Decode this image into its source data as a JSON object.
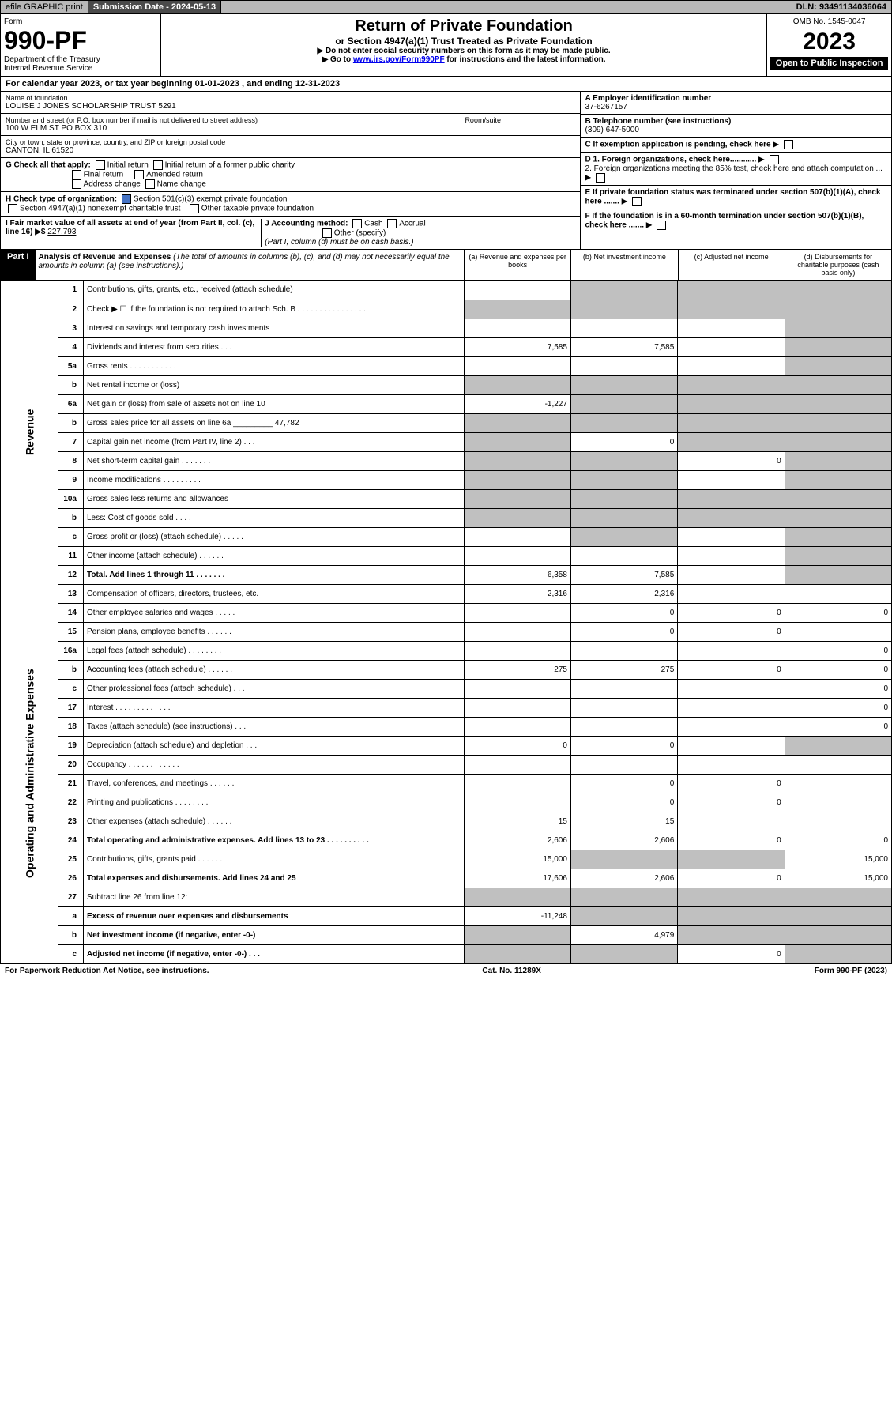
{
  "header": {
    "efile": "efile GRAPHIC print",
    "submission_label": "Submission Date - 2024-05-13",
    "dln": "DLN: 93491134036064"
  },
  "form": {
    "form_label": "Form",
    "form_num": "990-PF",
    "dept": "Department of the Treasury",
    "irs": "Internal Revenue Service",
    "title": "Return of Private Foundation",
    "subtitle": "or Section 4947(a)(1) Trust Treated as Private Foundation",
    "instr1": "▶ Do not enter social security numbers on this form as it may be made public.",
    "instr2_pre": "▶ Go to ",
    "instr2_link": "www.irs.gov/Form990PF",
    "instr2_post": " for instructions and the latest information.",
    "omb": "OMB No. 1545-0047",
    "year": "2023",
    "open": "Open to Public Inspection"
  },
  "cal_year": {
    "pre": "For calendar year 2023, or tax year beginning ",
    "begin": "01-01-2023",
    "mid": " , and ending ",
    "end": "12-31-2023"
  },
  "foundation": {
    "name_label": "Name of foundation",
    "name": "LOUISE J JONES SCHOLARSHIP TRUST 5291",
    "addr_label": "Number and street (or P.O. box number if mail is not delivered to street address)",
    "addr": "100 W ELM ST PO BOX 310",
    "room_label": "Room/suite",
    "city_label": "City or town, state or province, country, and ZIP or foreign postal code",
    "city": "CANTON, IL  61520",
    "ein_label": "A Employer identification number",
    "ein": "37-6267157",
    "phone_label": "B Telephone number (see instructions)",
    "phone": "(309) 647-5000",
    "c_label": "C If exemption application is pending, check here",
    "g_label": "G Check all that apply:",
    "g_opts": [
      "Initial return",
      "Initial return of a former public charity",
      "Final return",
      "Amended return",
      "Address change",
      "Name change"
    ],
    "d1": "D 1. Foreign organizations, check here............",
    "d2": "2. Foreign organizations meeting the 85% test, check here and attach computation ...",
    "e": "E  If private foundation status was terminated under section 507(b)(1)(A), check here .......",
    "h_label": "H Check type of organization:",
    "h1": "Section 501(c)(3) exempt private foundation",
    "h2": "Section 4947(a)(1) nonexempt charitable trust",
    "h3": "Other taxable private foundation",
    "f": "F  If the foundation is in a 60-month termination under section 507(b)(1)(B), check here .......",
    "i_label": "I Fair market value of all assets at end of year (from Part II, col. (c), line 16) ▶$ ",
    "i_val": "227,793",
    "j_label": "J Accounting method:",
    "j_cash": "Cash",
    "j_accrual": "Accrual",
    "j_other": "Other (specify)",
    "j_note": "(Part I, column (d) must be on cash basis.)"
  },
  "part1": {
    "label": "Part I",
    "title": "Analysis of Revenue and Expenses",
    "note": " (The total of amounts in columns (b), (c), and (d) may not necessarily equal the amounts in column (a) (see instructions).)",
    "col_a": "(a)  Revenue and expenses per books",
    "col_b": "(b)  Net investment income",
    "col_c": "(c)  Adjusted net income",
    "col_d": "(d)  Disbursements for charitable purposes (cash basis only)"
  },
  "sides": {
    "rev": "Revenue",
    "exp": "Operating and Administrative Expenses"
  },
  "rows": [
    {
      "n": "1",
      "d": "Contributions, gifts, grants, etc., received (attach schedule)",
      "a": "",
      "b": "g",
      "c": "g",
      "dd": "g"
    },
    {
      "n": "2",
      "d": "Check ▶ ☐ if the foundation is not required to attach Sch. B   .   .   .   .   .   .   .   .   .   .   .   .   .   .   .   .",
      "a": "g",
      "b": "g",
      "c": "g",
      "dd": "g"
    },
    {
      "n": "3",
      "d": "Interest on savings and temporary cash investments",
      "a": "",
      "b": "",
      "c": "",
      "dd": "g"
    },
    {
      "n": "4",
      "d": "Dividends and interest from securities   .   .   .",
      "a": "7,585",
      "b": "7,585",
      "c": "",
      "dd": "g"
    },
    {
      "n": "5a",
      "d": "Gross rents   .   .   .   .   .   .   .   .   .   .   .",
      "a": "",
      "b": "",
      "c": "",
      "dd": "g"
    },
    {
      "n": "b",
      "d": "Net rental income or (loss)  ",
      "a": "g",
      "b": "g",
      "c": "g",
      "dd": "g"
    },
    {
      "n": "6a",
      "d": "Net gain or (loss) from sale of assets not on line 10",
      "a": "-1,227",
      "b": "g",
      "c": "g",
      "dd": "g"
    },
    {
      "n": "b",
      "d": "Gross sales price for all assets on line 6a _________ 47,782",
      "a": "g",
      "b": "g",
      "c": "g",
      "dd": "g"
    },
    {
      "n": "7",
      "d": "Capital gain net income (from Part IV, line 2)   .   .   .",
      "a": "g",
      "b": "0",
      "c": "g",
      "dd": "g"
    },
    {
      "n": "8",
      "d": "Net short-term capital gain   .   .   .   .   .   .   .",
      "a": "g",
      "b": "g",
      "c": "0",
      "dd": "g"
    },
    {
      "n": "9",
      "d": "Income modifications   .   .   .   .   .   .   .   .   .",
      "a": "g",
      "b": "g",
      "c": "",
      "dd": "g"
    },
    {
      "n": "10a",
      "d": "Gross sales less returns and allowances",
      "a": "g",
      "b": "g",
      "c": "g",
      "dd": "g"
    },
    {
      "n": "b",
      "d": "Less: Cost of goods sold   .   .   .   .",
      "a": "g",
      "b": "g",
      "c": "g",
      "dd": "g"
    },
    {
      "n": "c",
      "d": "Gross profit or (loss) (attach schedule)   .   .   .   .   .",
      "a": "",
      "b": "g",
      "c": "",
      "dd": "g"
    },
    {
      "n": "11",
      "d": "Other income (attach schedule)   .   .   .   .   .   .",
      "a": "",
      "b": "",
      "c": "",
      "dd": "g"
    },
    {
      "n": "12",
      "d": "Total. Add lines 1 through 11   .   .   .   .   .   .   .",
      "a": "6,358",
      "b": "7,585",
      "c": "",
      "dd": "g",
      "bold": true
    },
    {
      "n": "13",
      "d": "Compensation of officers, directors, trustees, etc.",
      "a": "2,316",
      "b": "2,316",
      "c": "",
      "dd": ""
    },
    {
      "n": "14",
      "d": "Other employee salaries and wages   .   .   .   .   .",
      "a": "",
      "b": "0",
      "c": "0",
      "dd": "0"
    },
    {
      "n": "15",
      "d": "Pension plans, employee benefits   .   .   .   .   .   .",
      "a": "",
      "b": "0",
      "c": "0",
      "dd": ""
    },
    {
      "n": "16a",
      "d": "Legal fees (attach schedule)   .   .   .   .   .   .   .   .",
      "a": "",
      "b": "",
      "c": "",
      "dd": "0"
    },
    {
      "n": "b",
      "d": "Accounting fees (attach schedule)   .   .   .   .   .   .",
      "a": "275",
      "b": "275",
      "c": "0",
      "dd": "0"
    },
    {
      "n": "c",
      "d": "Other professional fees (attach schedule)   .   .   .",
      "a": "",
      "b": "",
      "c": "",
      "dd": "0"
    },
    {
      "n": "17",
      "d": "Interest   .   .   .   .   .   .   .   .   .   .   .   .   .",
      "a": "",
      "b": "",
      "c": "",
      "dd": "0"
    },
    {
      "n": "18",
      "d": "Taxes (attach schedule) (see instructions)   .   .   .",
      "a": "",
      "b": "",
      "c": "",
      "dd": "0"
    },
    {
      "n": "19",
      "d": "Depreciation (attach schedule) and depletion   .   .   .",
      "a": "0",
      "b": "0",
      "c": "",
      "dd": "g"
    },
    {
      "n": "20",
      "d": "Occupancy   .   .   .   .   .   .   .   .   .   .   .   .",
      "a": "",
      "b": "",
      "c": "",
      "dd": ""
    },
    {
      "n": "21",
      "d": "Travel, conferences, and meetings   .   .   .   .   .   .",
      "a": "",
      "b": "0",
      "c": "0",
      "dd": ""
    },
    {
      "n": "22",
      "d": "Printing and publications   .   .   .   .   .   .   .   .",
      "a": "",
      "b": "0",
      "c": "0",
      "dd": ""
    },
    {
      "n": "23",
      "d": "Other expenses (attach schedule)   .   .   .   .   .   .",
      "a": "15",
      "b": "15",
      "c": "",
      "dd": ""
    },
    {
      "n": "24",
      "d": "Total operating and administrative expenses. Add lines 13 to 23   .   .   .   .   .   .   .   .   .   .",
      "a": "2,606",
      "b": "2,606",
      "c": "0",
      "dd": "0",
      "bold": true
    },
    {
      "n": "25",
      "d": "Contributions, gifts, grants paid   .   .   .   .   .   .",
      "a": "15,000",
      "b": "g",
      "c": "g",
      "dd": "15,000"
    },
    {
      "n": "26",
      "d": "Total expenses and disbursements. Add lines 24 and 25",
      "a": "17,606",
      "b": "2,606",
      "c": "0",
      "dd": "15,000",
      "bold": true
    },
    {
      "n": "27",
      "d": "Subtract line 26 from line 12:",
      "a": "g",
      "b": "g",
      "c": "g",
      "dd": "g"
    },
    {
      "n": "a",
      "d": "Excess of revenue over expenses and disbursements",
      "a": "-11,248",
      "b": "g",
      "c": "g",
      "dd": "g",
      "bold": true
    },
    {
      "n": "b",
      "d": "Net investment income (if negative, enter -0-)",
      "a": "g",
      "b": "4,979",
      "c": "g",
      "dd": "g",
      "bold": true
    },
    {
      "n": "c",
      "d": "Adjusted net income (if negative, enter -0-)   .   .   .",
      "a": "g",
      "b": "g",
      "c": "0",
      "dd": "g",
      "bold": true
    }
  ],
  "footer": {
    "left": "For Paperwork Reduction Act Notice, see instructions.",
    "mid": "Cat. No. 11289X",
    "right": "Form 990-PF (2023)"
  }
}
